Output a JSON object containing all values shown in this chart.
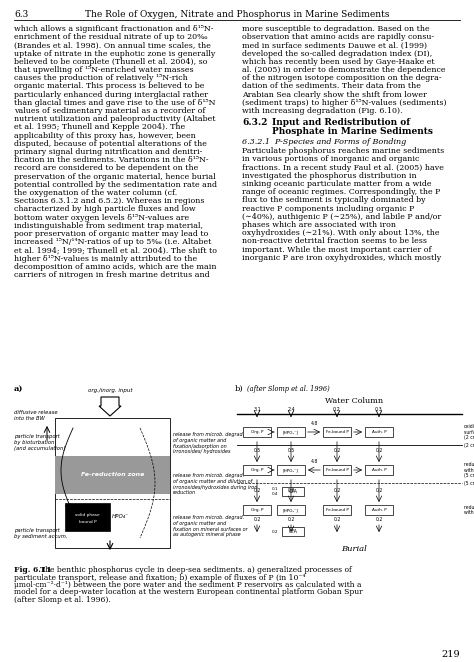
{
  "page_number": "6.3",
  "header_title": "The Role of Oxygen, Nitrate and Phosphorus in Marine Sediments",
  "left_column_text": [
    "which allows a significant fractionation and δ¹⁵N-",
    "enrichment of the residual nitrate of up to 20‰",
    "(Brandes et al. 1998). On annual time scales, the",
    "uptake of nitrate in the euphotic zone is generally",
    "believed to be complete (Thunell et al. 2004), so",
    "that upwelling of ¹⁵N-enriched water masses",
    "causes the production of relatively ¹⁵N-rich",
    "organic material. This process is believed to be",
    "particularly enhanced during interglacial rather",
    "than glacial times and gave rise to the use of δ¹⁵N",
    "values of sedimentary material as a recorder of",
    "nutrient utilization and paleoproductivity (Altabet",
    "et al. 1995; Thunell and Kepple 2004). The",
    "applicability of this proxy has, however, been",
    "disputed, because of potential alterations of the",
    "primary signal during nitrification and denitri-",
    "fication in the sediments. Variations in the δ¹⁵N-",
    "record are considered to be dependent on the",
    "preservation of the organic material, hence burial",
    "potential controlled by the sedimentation rate and",
    "the oxygenation of the water column (cf.",
    "Sections 6.3.1.2 and 6.5.2). Whereas in regions",
    "characterized by high particle fluxes and low",
    "bottom water oxygen levels δ¹⁵N-values are",
    "indistinguishable from sediment trap material,",
    "poor preservation of organic matter may lead to",
    "increased ¹⁵N/¹⁴N-ratios of up to 5‰ (i.e. Altabet",
    "et al. 1994; 1999; Thunell et al. 2004). The shift to",
    "higher δ¹⁵N-values is mainly attributed to the",
    "decomposition of amino acids, which are the main",
    "carriers of nitrogen in fresh marine detritus and"
  ],
  "right_column_text": [
    "more susceptible to degradation. Based on the",
    "observation that amino acids are rapidly consu-",
    "med in surface sediments Dauwe et al. (1999)",
    "developed the so-called degradation index (DI),",
    "which has recently been used by Gaye-Haake et",
    "al. (2005) in order to demonstrate the dependence",
    "of the nitrogen isotope composition on the degra-",
    "dation of the sediments. Their data from the",
    "Arabian Sea clearly show the shift from lower",
    "(sediment traps) to higher δ¹⁵N-values (sediments)",
    "with increasing degradation (Fig. 6.10)."
  ],
  "sec632_num": "6.3.2",
  "sec632_title1": "Input and Redistribution of",
  "sec632_title2": "Phosphate in Marine Sediments",
  "sec6321_title": "6.3.2.1  P-Species and Forms of Bonding",
  "particulate_text": [
    "Particulate phosphorus reaches marine sediments",
    "in various portions of inorganic and organic",
    "fractions. In a recent study Faul et al. (2005) have",
    "investigated the phosphorus distribution in",
    "sinking oceanic particulate matter from a wide",
    "range of oceanic regimes. Correspondingly, the P",
    "flux to the sediment is typically dominated by",
    "reactive P components including organic P",
    "(∼40%), authigenic P (∼25%), and labile P and/or",
    "phases which are associated with iron",
    "oxyhydroxides (∼21%). With only about 13%, the",
    "non-reactive detrital fraction seems to be less",
    "important. While the most important carrier of",
    "inorganic P are iron oxyhydroxides, which mostly"
  ],
  "fig_caption_bold": "Fig. 6.11",
  "fig_caption_rest": "  The benthic phosphorus cycle in deep-sea sediments. a) generalized processes of particulate transport, release and fixation; b) example of fluxes of P (in 10⁻⁴ μmol·cm⁻²·d⁻¹) between the pore water and the sediment P reservoirs as calculated with a model for a deep-water location at the western European continental platform Goban Spur (after Slomp et al. 1996).",
  "page_footer": "219",
  "bg_color": "#ffffff",
  "text_color": "#000000"
}
